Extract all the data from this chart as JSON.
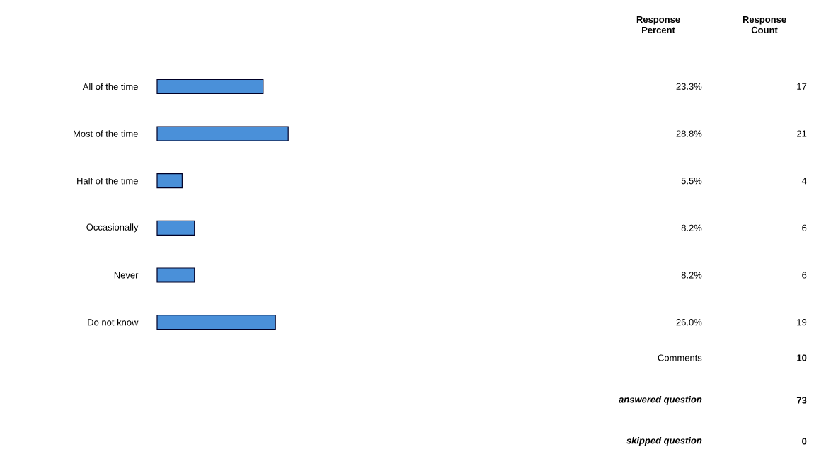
{
  "chart_data": {
    "type": "bar",
    "orientation": "horizontal",
    "categories": [
      "All of the time",
      "Most of the time",
      "Half of the time",
      "Occasionally",
      "Never",
      "Do not know"
    ],
    "values": [
      23.3,
      28.8,
      5.5,
      8.2,
      8.2,
      26.0
    ],
    "value_labels": [
      "23.3%",
      "28.8%",
      "5.5%",
      "8.2%",
      "8.2%",
      "26.0%"
    ],
    "color": "#4a90d9",
    "tick_labels": "y",
    "annotations": [
      "Response Percent",
      "Response Count",
      "17",
      "21",
      "4",
      "6",
      "6",
      "19",
      "Comments",
      "10",
      "answered question",
      "73",
      "skipped question",
      "0"
    ]
  }
}
